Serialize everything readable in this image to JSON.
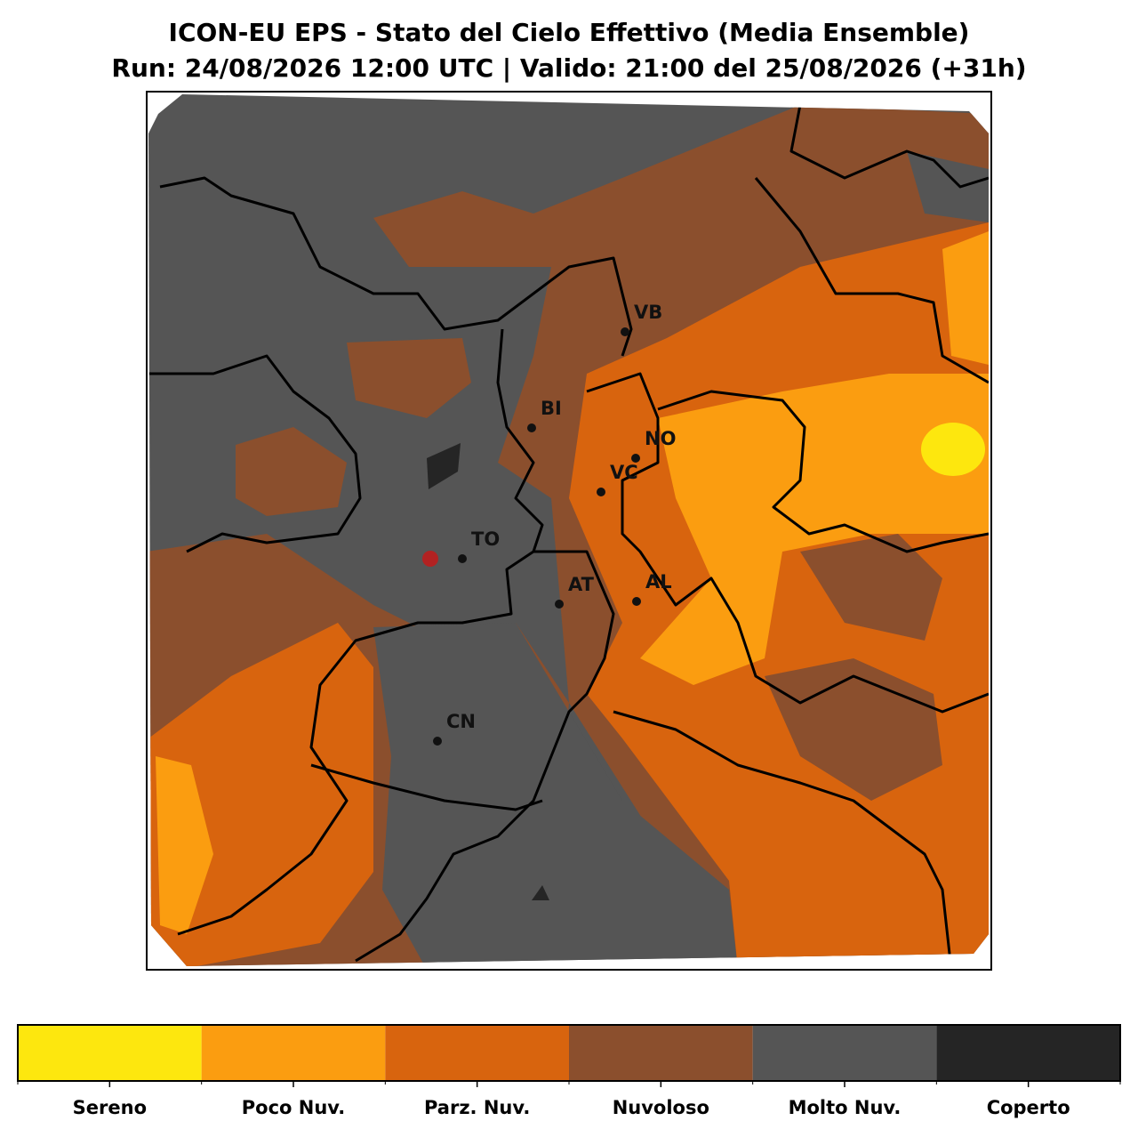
{
  "header": {
    "title": "ICON-EU EPS - Stato del Cielo Effettivo (Media Ensemble)",
    "subtitle": "Run: 24/08/2026 12:00 UTC | Valido: 21:00 del 25/08/2026 (+31h)"
  },
  "cities": [
    "VB",
    "BI",
    "NO",
    "VC",
    "TO",
    "AT",
    "AL",
    "CN"
  ],
  "legend": [
    {
      "label": "Sereno",
      "color": "#fde70e"
    },
    {
      "label": "Poco Nuv.",
      "color": "#fb9d10"
    },
    {
      "label": "Parz. Nuv.",
      "color": "#d8640e"
    },
    {
      "label": "Nuvoloso",
      "color": "#8b4f2d"
    },
    {
      "label": "Molto Nuv.",
      "color": "#555555"
    },
    {
      "label": "Coperto",
      "color": "#252525"
    }
  ]
}
